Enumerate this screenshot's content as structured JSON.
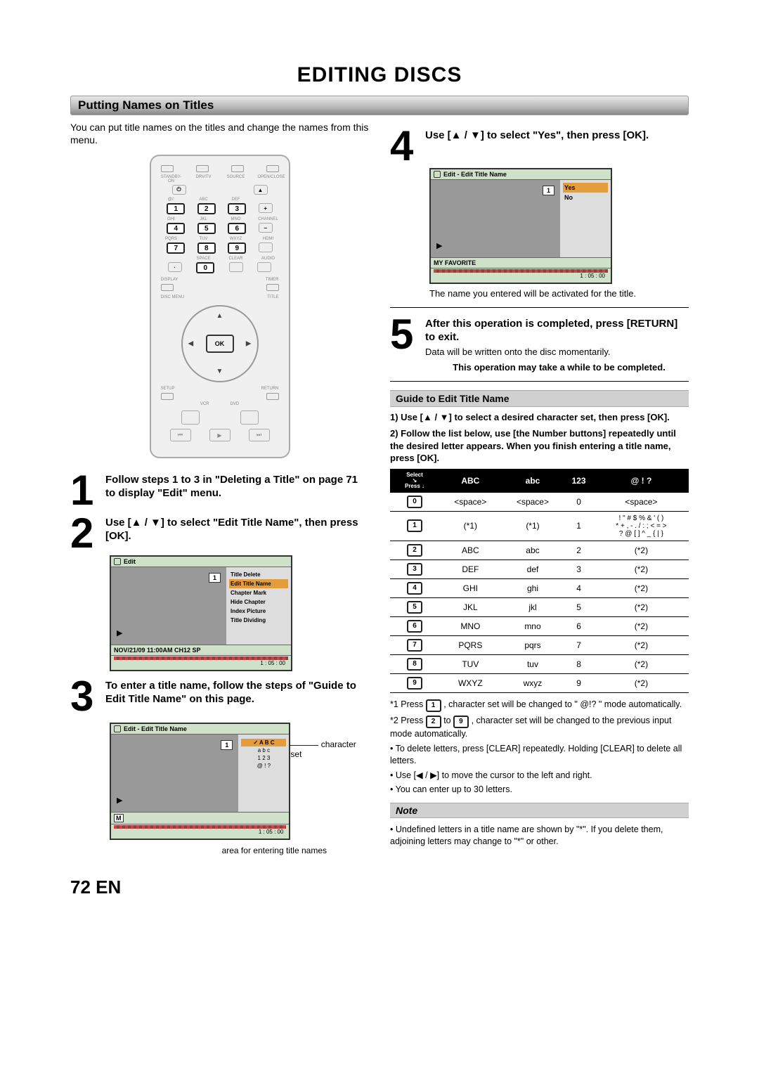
{
  "page": {
    "title": "EDITING DISCS",
    "section": "Putting Names on Titles",
    "intro": "You can put title names on the titles and change the names from this menu.",
    "footer_num": "72",
    "footer_lang": "EN"
  },
  "remote": {
    "row_labels_0": [
      "STANDBY-ON",
      "DRV/TV",
      "SOURCE",
      "OPEN/CLOSE"
    ],
    "row_labels_1": [
      "@/:",
      "ABC",
      "DEF",
      ""
    ],
    "row_labels_2": [
      "GHI",
      "JKL",
      "MNO",
      "CHANNEL"
    ],
    "row_labels_3": [
      "PQRS",
      "TUV",
      "WXYZ",
      "HDMI"
    ],
    "row_labels_4": [
      "",
      "SPACE",
      "CLEAR",
      "AUDIO"
    ],
    "nums": [
      [
        "1",
        "2",
        "3"
      ],
      [
        "4",
        "5",
        "6"
      ],
      [
        "7",
        "8",
        "9"
      ]
    ],
    "zero": "0",
    "display": "DISPLAY",
    "timer": "TIMER",
    "discmenu": "DISC MENU",
    "titlebtn": "TITLE",
    "ok": "OK",
    "setup": "SETUP",
    "return": "RETURN",
    "vcr": "VCR",
    "dvd": "DVD",
    "transport": [
      "⏮",
      "▶",
      "⏭"
    ]
  },
  "steps": {
    "s1": "Follow steps 1 to 3 in \"Deleting a Title\" on page 71 to display \"Edit\" menu.",
    "s2": "Use [▲ / ▼] to select \"Edit Title Name\", then press [OK].",
    "s3": "To enter a title name, follow the steps of \"Guide to Edit Title Name\" on this page.",
    "s4": "Use [▲ / ▼] to select \"Yes\", then press [OK].",
    "s4_after": "The name you entered will be activated for the title.",
    "s5": "After this operation is completed, press [RETURN] to exit.",
    "s5_after": "Data will be written onto the disc momentarily.",
    "s5_warn": "This operation may take a while to be completed."
  },
  "osd2": {
    "head": "Edit",
    "chip": "1",
    "menu": [
      "Title Delete",
      "Edit Title Name",
      "Chapter Mark",
      "Hide Chapter",
      "Index Picture",
      "Title Dividing"
    ],
    "menu_sel_index": 1,
    "foot": "NOV/21/09 11:00AM CH12 SP",
    "time": "1 : 05 : 00"
  },
  "osd3": {
    "head": "Edit - Edit Title Name",
    "chip": "1",
    "charsets": [
      "A  B  C",
      "a  b  c",
      "1  2  3",
      "@  !  ?"
    ],
    "sel_index": 0,
    "entry": "M",
    "time": "1 : 05 : 00",
    "callout_top": "character set",
    "callout_bottom": "area for entering title names"
  },
  "osd4": {
    "head": "Edit - Edit Title Name",
    "chip": "1",
    "options": [
      "Yes",
      "No"
    ],
    "sel_index": 0,
    "foot": "MY FAVORITE",
    "time": "1 : 05 : 00"
  },
  "guide": {
    "title": "Guide to Edit Title Name",
    "line1": "1) Use [▲ / ▼] to select a desired character set, then press [OK].",
    "line2": "2) Follow the list below, use [the Number buttons] repeatedly until the desired letter appears. When you finish entering a title name, press [OK]."
  },
  "table": {
    "headers": {
      "select_press": "Select",
      "press": "Press",
      "ABC": "ABC",
      "abc": "abc",
      "123": "123",
      "sym": "@ ! ?"
    },
    "rows": [
      {
        "key": "0",
        "ABC": "<space>",
        "abc": "<space>",
        "num": "0",
        "sym": "<space>"
      },
      {
        "key": "1",
        "ABC": "(*1)",
        "abc": "(*1)",
        "num": "1",
        "sym": "! \" # $ % & ' ( )\n* + , - . / : ; < = >\n? @ [ ] ^ _ { | }"
      },
      {
        "key": "2",
        "ABC": "ABC",
        "abc": "abc",
        "num": "2",
        "sym": "(*2)"
      },
      {
        "key": "3",
        "ABC": "DEF",
        "abc": "def",
        "num": "3",
        "sym": "(*2)"
      },
      {
        "key": "4",
        "ABC": "GHI",
        "abc": "ghi",
        "num": "4",
        "sym": "(*2)"
      },
      {
        "key": "5",
        "ABC": "JKL",
        "abc": "jkl",
        "num": "5",
        "sym": "(*2)"
      },
      {
        "key": "6",
        "ABC": "MNO",
        "abc": "mno",
        "num": "6",
        "sym": "(*2)"
      },
      {
        "key": "7",
        "ABC": "PQRS",
        "abc": "pqrs",
        "num": "7",
        "sym": "(*2)"
      },
      {
        "key": "8",
        "ABC": "TUV",
        "abc": "tuv",
        "num": "8",
        "sym": "(*2)"
      },
      {
        "key": "9",
        "ABC": "WXYZ",
        "abc": "wxyz",
        "num": "9",
        "sym": "(*2)"
      }
    ]
  },
  "footnotes": {
    "f1a": "*1 Press ",
    "f1b": " , character set will be changed to \" @!? \" mode automatically.",
    "f2a": "*2 Press ",
    "f2b": " to ",
    "f2c": " , character set will be changed to the previous input mode automatically.",
    "b1": "To delete letters, press [CLEAR] repeatedly. Holding [CLEAR] to delete all letters.",
    "b2": "Use [◀ / ▶] to move the cursor to the left and right.",
    "b3": "You can enter up to 30 letters."
  },
  "note": {
    "title": "Note",
    "text": "Undefined letters in a title name are shown by \"*\". If you delete them, adjoining letters may change to \"*\" or other."
  }
}
